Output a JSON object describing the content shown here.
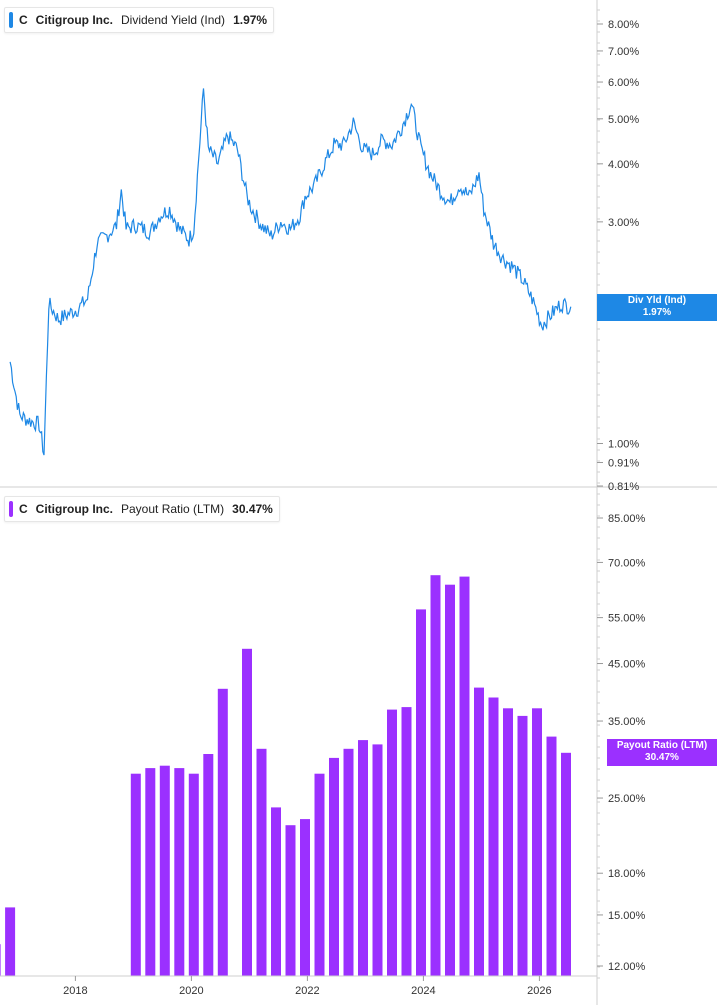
{
  "top_panel": {
    "symbol": "C",
    "company": "Citigroup Inc.",
    "metric": "Dividend Yield (Ind)",
    "value": "1.97%",
    "badge_label": "Div Yld (Ind)",
    "badge_value": "1.97%",
    "color": "#1e88e5"
  },
  "bottom_panel": {
    "symbol": "C",
    "company": "Citigroup Inc.",
    "metric": "Payout Ratio (LTM)",
    "value": "30.47%",
    "badge_label": "Payout Ratio (LTM)",
    "badge_value": "30.47%",
    "color": "#9b30ff"
  },
  "chart_data": [
    {
      "type": "line",
      "title": "Dividend Yield (Ind)",
      "scale": "log",
      "y_ticks": [
        "8.00%",
        "7.00%",
        "6.00%",
        "5.00%",
        "4.00%",
        "3.00%",
        "1.00%",
        "0.91%",
        "0.81%"
      ],
      "y_tick_values": [
        8.0,
        7.0,
        6.0,
        5.0,
        4.0,
        3.0,
        1.0,
        0.91,
        0.81
      ],
      "x_ticks": [
        "2018",
        "2020",
        "2022",
        "2024",
        "2026"
      ],
      "series": [
        {
          "name": "Div Yld (Ind)",
          "points": [
            [
              "2016-11",
              1.5
            ],
            [
              "2016-12",
              1.3
            ],
            [
              "2017-01",
              1.15
            ],
            [
              "2017-03",
              1.12
            ],
            [
              "2017-05",
              1.1
            ],
            [
              "2017-06",
              0.95
            ],
            [
              "2017-07",
              2.0
            ],
            [
              "2017-09",
              1.85
            ],
            [
              "2017-11",
              1.9
            ],
            [
              "2018-01",
              1.95
            ],
            [
              "2018-03",
              2.05
            ],
            [
              "2018-05",
              2.7
            ],
            [
              "2018-07",
              2.8
            ],
            [
              "2018-09",
              2.95
            ],
            [
              "2018-10",
              3.5
            ],
            [
              "2018-11",
              2.9
            ],
            [
              "2019-01",
              2.95
            ],
            [
              "2019-04",
              2.85
            ],
            [
              "2019-06",
              3.1
            ],
            [
              "2019-08",
              3.2
            ],
            [
              "2019-10",
              2.9
            ],
            [
              "2019-12",
              2.75
            ],
            [
              "2020-01",
              2.9
            ],
            [
              "2020-03",
              5.8
            ],
            [
              "2020-04",
              4.3
            ],
            [
              "2020-06",
              4.0
            ],
            [
              "2020-08",
              4.6
            ],
            [
              "2020-10",
              4.3
            ],
            [
              "2020-12",
              3.4
            ],
            [
              "2021-01",
              3.2
            ],
            [
              "2021-03",
              2.95
            ],
            [
              "2021-05",
              2.8
            ],
            [
              "2021-07",
              3.0
            ],
            [
              "2021-09",
              2.9
            ],
            [
              "2021-11",
              3.1
            ],
            [
              "2021-12",
              3.4
            ],
            [
              "2022-02",
              3.6
            ],
            [
              "2022-04",
              4.0
            ],
            [
              "2022-06",
              4.4
            ],
            [
              "2022-08",
              4.4
            ],
            [
              "2022-10",
              4.9
            ],
            [
              "2022-12",
              4.3
            ],
            [
              "2023-02",
              4.2
            ],
            [
              "2023-04",
              4.5
            ],
            [
              "2023-06",
              4.4
            ],
            [
              "2023-08",
              4.8
            ],
            [
              "2023-10",
              5.4
            ],
            [
              "2023-12",
              4.3
            ],
            [
              "2024-02",
              3.8
            ],
            [
              "2024-04",
              3.5
            ],
            [
              "2024-06",
              3.3
            ],
            [
              "2024-08",
              3.6
            ],
            [
              "2024-10",
              3.4
            ],
            [
              "2024-12",
              3.8
            ],
            [
              "2025-01",
              3.2
            ],
            [
              "2025-03",
              2.7
            ],
            [
              "2025-05",
              2.5
            ],
            [
              "2025-07",
              2.4
            ],
            [
              "2025-09",
              2.25
            ],
            [
              "2025-11",
              2.05
            ],
            [
              "2026-01",
              1.8
            ],
            [
              "2026-03",
              1.9
            ],
            [
              "2026-05",
              2.0
            ],
            [
              "2026-07",
              1.97
            ]
          ]
        }
      ]
    },
    {
      "type": "bar",
      "title": "Payout Ratio (LTM)",
      "scale": "log",
      "y_ticks": [
        "85.00%",
        "70.00%",
        "55.00%",
        "45.00%",
        "35.00%",
        "25.00%",
        "18.00%",
        "15.00%",
        "12.00%"
      ],
      "y_tick_values": [
        85,
        70,
        55,
        45,
        35,
        25,
        18,
        15,
        12
      ],
      "x_ticks": [
        "2018",
        "2020",
        "2022",
        "2024",
        "2026"
      ],
      "series": [
        {
          "name": "Payout Ratio (LTM)",
          "points": [
            [
              "2016-08",
              13.2
            ],
            [
              "2016-11",
              15.5
            ],
            [
              "2019-01",
              27.8
            ],
            [
              "2019-04",
              28.5
            ],
            [
              "2019-07",
              28.8
            ],
            [
              "2019-10",
              28.5
            ],
            [
              "2020-01",
              27.8
            ],
            [
              "2020-04",
              30.3
            ],
            [
              "2020-07",
              40.3
            ],
            [
              "2020-12",
              48.0
            ],
            [
              "2021-03",
              31.0
            ],
            [
              "2021-06",
              24.0
            ],
            [
              "2021-09",
              22.2
            ],
            [
              "2021-12",
              22.8
            ],
            [
              "2022-03",
              27.8
            ],
            [
              "2022-06",
              29.8
            ],
            [
              "2022-09",
              31.0
            ],
            [
              "2022-12",
              32.2
            ],
            [
              "2023-03",
              31.6
            ],
            [
              "2023-06",
              36.8
            ],
            [
              "2023-09",
              37.2
            ],
            [
              "2023-12",
              57.0
            ],
            [
              "2024-03",
              66.2
            ],
            [
              "2024-06",
              63.5
            ],
            [
              "2024-09",
              65.8
            ],
            [
              "2024-12",
              40.5
            ],
            [
              "2025-03",
              38.8
            ],
            [
              "2025-06",
              37.0
            ],
            [
              "2025-09",
              35.8
            ],
            [
              "2025-12",
              37.0
            ],
            [
              "2026-03",
              32.7
            ],
            [
              "2026-06",
              30.47
            ]
          ]
        }
      ]
    }
  ]
}
